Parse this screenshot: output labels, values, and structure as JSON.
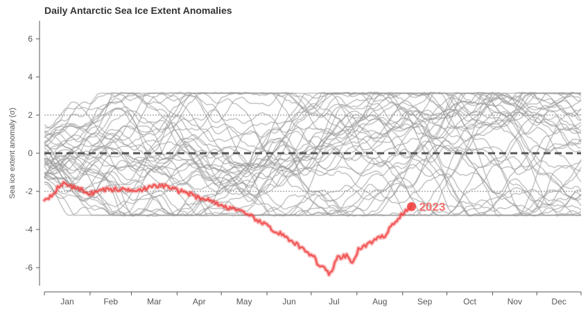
{
  "chart_data": {
    "type": "line",
    "title": "Daily Antarctic Sea Ice Extent Anomalies",
    "xlabel": "",
    "ylabel": "Sea ice extent anomaly (σ)",
    "ylim": [
      -7.2,
      7
    ],
    "y_ticks": [
      -6,
      -4,
      -2,
      0,
      2,
      4,
      6
    ],
    "x_range_day_of_year": [
      1,
      365
    ],
    "x_tick_labels": [
      "Jan",
      "Feb",
      "Mar",
      "Apr",
      "May",
      "Jun",
      "Jul",
      "Aug",
      "Sep",
      "Oct",
      "Nov",
      "Dec"
    ],
    "reference_lines": [
      {
        "y": 0,
        "style": "dashed",
        "color": "#555555"
      },
      {
        "y": 2,
        "style": "dotted",
        "color": "#555555"
      },
      {
        "y": -2,
        "style": "dotted",
        "color": "#555555"
      }
    ],
    "background_series": {
      "description": "Historical years (1979–2022)",
      "count": 44,
      "color": "#999999",
      "typical_range": [
        -3.3,
        3.2
      ]
    },
    "highlight_series": {
      "name": "2023",
      "color": "#f04545",
      "x_day_of_year": [
        1,
        15,
        25,
        32,
        42,
        52,
        65,
        80,
        95,
        105,
        115,
        122,
        130,
        140,
        150,
        160,
        170,
        176,
        182,
        188,
        195,
        200,
        206,
        210,
        215,
        222,
        230,
        238,
        245,
        250
      ],
      "y": [
        -2.4,
        -1.6,
        -1.9,
        -2.1,
        -1.9,
        -1.9,
        -1.9,
        -1.7,
        -2.0,
        -2.3,
        -2.5,
        -2.8,
        -2.9,
        -3.3,
        -3.7,
        -4.2,
        -4.7,
        -5.0,
        -5.3,
        -5.9,
        -6.3,
        -5.5,
        -5.4,
        -5.7,
        -5.0,
        -4.7,
        -4.4,
        -3.7,
        -3.1,
        -2.8
      ],
      "end_label": "2023",
      "end_point": {
        "x_day_of_year": 250,
        "y": -2.8
      }
    }
  }
}
